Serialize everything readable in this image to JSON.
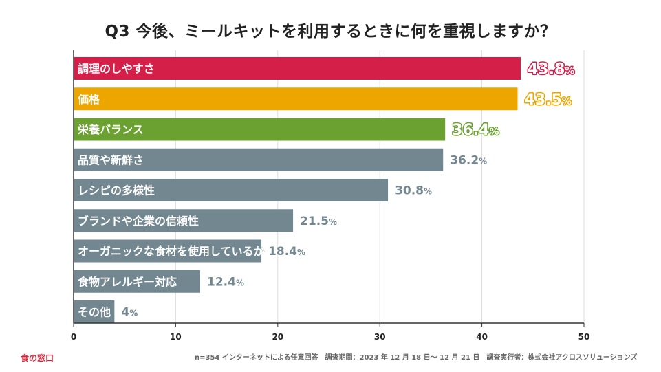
{
  "chart_data": {
    "type": "bar",
    "orientation": "horizontal",
    "title": "Q3 今後、ミールキットを利用するときに何を重視しますか？",
    "categories": [
      "調理のしやすさ",
      "価格",
      "栄養バランス",
      "品質や新鮮さ",
      "レシピの多様性",
      "ブランドや企業の信頼性",
      "オーガニックな食材を使用しているか",
      "食物アレルギー対応",
      "その他"
    ],
    "values": [
      43.8,
      43.5,
      36.4,
      36.2,
      30.8,
      21.5,
      18.4,
      12.4,
      4
    ],
    "value_labels": [
      "43.8",
      "43.5",
      "36.4",
      "36.2",
      "30.8",
      "21.5",
      "18.4",
      "12.4",
      "4"
    ],
    "unit": "%",
    "colors": [
      "#d41f48",
      "#eda600",
      "#6aa130",
      "#738791",
      "#738791",
      "#738791",
      "#738791",
      "#738791",
      "#738791"
    ],
    "xlim": [
      0,
      50
    ],
    "xticks": [
      "0",
      "10",
      "20",
      "30",
      "40",
      "50"
    ],
    "xlabel": "",
    "ylabel": ""
  },
  "footer": {
    "logo": "食の窓口",
    "note": "n=354 インターネットによる任意回答　調査期間：2023 年 12 月 18 日～ 12 月 21 日　調査実行者：株式会社アクロスソリューションズ"
  }
}
